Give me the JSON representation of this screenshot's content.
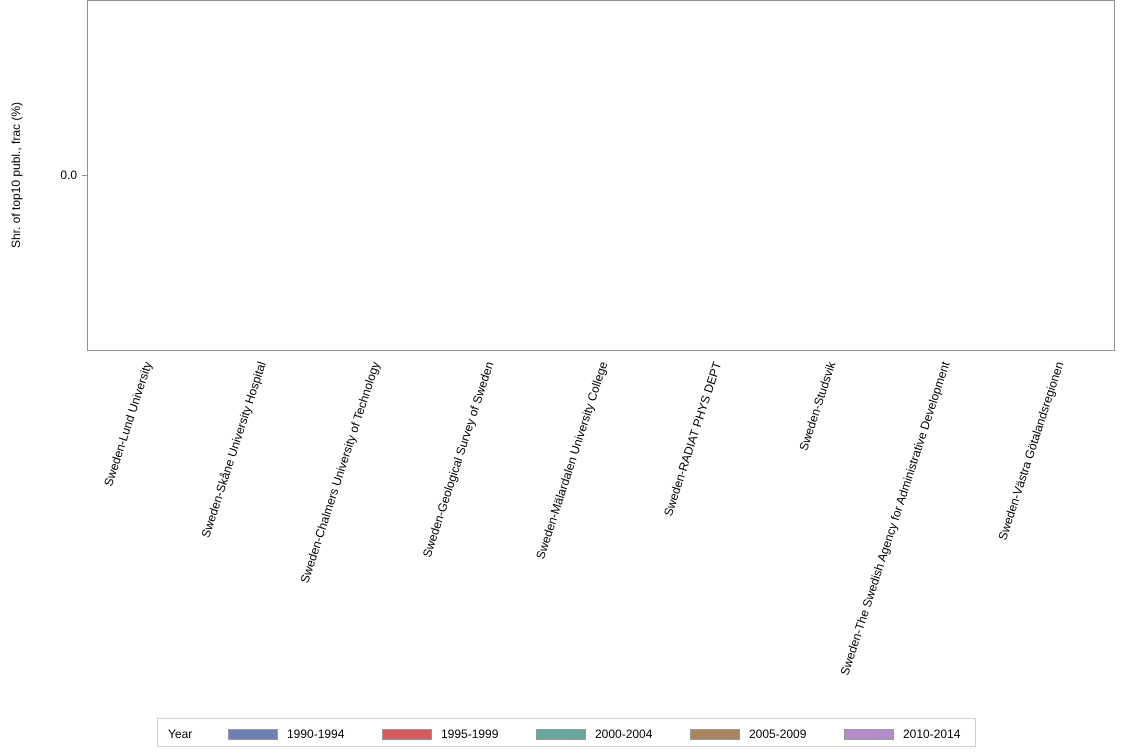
{
  "chart_data": {
    "type": "bar",
    "title": "",
    "xlabel": "",
    "ylabel": "Shr. of top10 publ., frac (%)",
    "yticks": [
      "0.0"
    ],
    "categories": [
      "Sweden-Lund University",
      "Sweden-Skåne University Hospital",
      "Sweden-Chalmers University of Technology",
      "Sweden-Geological Survey of Sweden",
      "Sweden-Mälardalen University College",
      "Sweden-RADIAT PHYS DEPT",
      "Sweden-Studsvik",
      "Sweden-The Swedish Agency for Administrative Development",
      "Sweden-Västra Götalandsregionen"
    ],
    "series": [
      {
        "name": "1990-1994",
        "color": "#6f7fb4",
        "values": [
          0,
          0,
          0,
          0,
          0,
          0,
          0,
          0,
          0
        ]
      },
      {
        "name": "1995-1999",
        "color": "#d25c5c",
        "values": [
          0,
          0,
          0,
          0,
          0,
          0,
          0,
          0,
          0
        ]
      },
      {
        "name": "2000-2004",
        "color": "#66a89f",
        "values": [
          0,
          0,
          0,
          0,
          0,
          0,
          0,
          0,
          0
        ]
      },
      {
        "name": "2005-2009",
        "color": "#a8855c",
        "values": [
          0,
          0,
          0,
          0,
          0,
          0,
          0,
          0,
          0
        ]
      },
      {
        "name": "2010-2014",
        "color": "#b48ccc",
        "values": [
          0,
          0,
          0,
          0,
          0,
          0,
          0,
          0,
          0
        ]
      }
    ],
    "legend_title": "Year",
    "legend_position": "bottom",
    "grid": false
  }
}
